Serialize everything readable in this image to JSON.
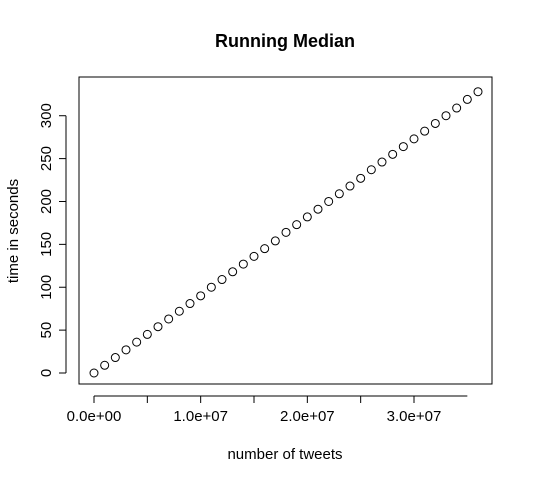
{
  "chart_data": {
    "type": "scatter",
    "title": "Running Median",
    "xlabel": "number of tweets",
    "ylabel": "time in seconds",
    "xlim": [
      0,
      36000000
    ],
    "ylim": [
      0,
      330
    ],
    "x_ticks": [
      0,
      10000000,
      20000000,
      30000000
    ],
    "x_tick_labels": [
      "0.0e+00",
      "1.0e+07",
      "2.0e+07",
      "3.0e+07"
    ],
    "y_ticks": [
      0,
      50,
      100,
      150,
      200,
      250,
      300
    ],
    "y_tick_labels": [
      "0",
      "50",
      "100",
      "150",
      "200",
      "250",
      "300"
    ],
    "grid": false,
    "legend": "none",
    "point_style": "open-circle",
    "point_color": "#000000",
    "series": [
      {
        "x": [
          0,
          1000000,
          2000000,
          3000000,
          4000000,
          5000000,
          6000000,
          7000000,
          8000000,
          9000000,
          10000000,
          11000000,
          12000000,
          13000000,
          14000000,
          15000000,
          16000000,
          17000000,
          18000000,
          19000000,
          20000000,
          21000000,
          22000000,
          23000000,
          24000000,
          25000000,
          26000000,
          27000000,
          28000000,
          29000000,
          30000000,
          31000000,
          32000000,
          33000000,
          34000000,
          35000000,
          36000000
        ],
        "y": [
          0,
          9,
          18,
          27,
          36,
          45,
          54,
          63,
          72,
          81,
          90,
          100,
          109,
          118,
          127,
          136,
          145,
          154,
          164,
          173,
          182,
          191,
          200,
          209,
          218,
          227,
          237,
          246,
          255,
          264,
          273,
          282,
          291,
          300,
          309,
          319,
          328
        ]
      }
    ]
  }
}
